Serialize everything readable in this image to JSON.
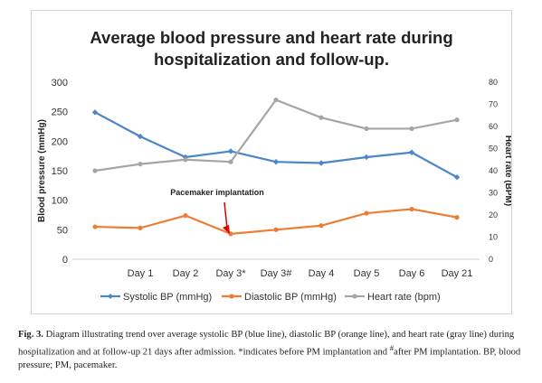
{
  "chart_data": {
    "type": "line",
    "title_line1": "Average blood pressure and heart rate during",
    "title_line2": "hospitalization and follow-up.",
    "categories": [
      "",
      "Day 1",
      "Day 2",
      "Day 3*",
      "Day 3#",
      "Day 4",
      "Day 5",
      "Day 6",
      "Day 21"
    ],
    "y_left": {
      "label": "Blood pressure (mmHg)",
      "min": 0,
      "max": 300,
      "ticks": [
        0,
        50,
        100,
        150,
        200,
        250,
        300
      ]
    },
    "y_right": {
      "label": "Heart rate (BPM)",
      "min": 0,
      "max": 80,
      "ticks": [
        0,
        10,
        20,
        30,
        40,
        50,
        60,
        70,
        80
      ]
    },
    "series": [
      {
        "name": "Systolic BP (mmHg)",
        "axis": "left",
        "color": "#4a86c8",
        "marker": "diamond",
        "values": [
          249,
          208,
          173,
          183,
          165,
          163,
          173,
          181,
          139
        ]
      },
      {
        "name": "Diastolic BP (mmHg)",
        "axis": "left",
        "color": "#ed7d31",
        "marker": "circle",
        "values": [
          55,
          53,
          74,
          43,
          50,
          57,
          78,
          85,
          71
        ]
      },
      {
        "name": "Heart rate (bpm)",
        "axis": "right",
        "color": "#a5a5a5",
        "marker": "circle",
        "values": [
          40,
          43,
          45,
          44,
          72,
          64,
          59,
          59,
          63
        ]
      }
    ],
    "annotation": {
      "text": "Pacemaker implantation",
      "category_index": 3,
      "arrow_color": "#e00000"
    },
    "grid": false,
    "legend_position": "bottom"
  },
  "caption": {
    "label": "Fig. 3.",
    "text_part1": " Diagram illustrating trend over average systolic BP (blue line), diastolic BP (orange line), and heart rate (gray line) during hospitalization and at follow-up 21 days after admission. *indicates before PM implantation and ",
    "superscript": "#",
    "text_part2": "after PM implantation. BP, blood pressure; PM, pacemaker."
  }
}
